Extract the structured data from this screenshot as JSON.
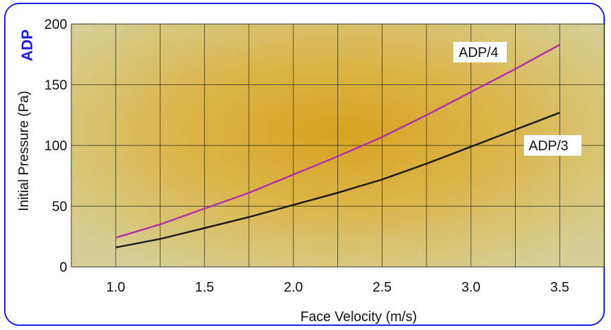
{
  "brand": "ADP",
  "colors": {
    "frame": "#1a1aff",
    "brand": "#1a1aff",
    "plot_center": "#d9a21e",
    "plot_edge": "#d6cf95",
    "grid": "#2a2a14"
  },
  "chart_data": {
    "type": "line",
    "title": "",
    "xlabel": "Face Velocity (m/s)",
    "ylabel": "Initial Pressure (Pa)",
    "xlim": [
      0.75,
      3.75
    ],
    "ylim": [
      0,
      200
    ],
    "xticks": [
      1.0,
      1.5,
      2.0,
      2.5,
      3.0,
      3.5
    ],
    "xtick_labels": [
      "1.0",
      "1.5",
      "2.0",
      "2.5",
      "3.0",
      "3.5"
    ],
    "yticks": [
      0,
      50,
      100,
      150,
      200
    ],
    "ytick_labels": [
      "0",
      "50",
      "100",
      "150",
      "200"
    ],
    "grid": true,
    "legend": "inline labels",
    "series": [
      {
        "name": "ADP/4",
        "color": "#b02fb0",
        "x": [
          1.0,
          1.25,
          1.5,
          1.75,
          2.0,
          2.25,
          2.5,
          2.75,
          3.0,
          3.25,
          3.5
        ],
        "y": [
          24,
          35,
          48,
          61,
          76,
          91,
          107,
          125,
          144,
          163,
          183
        ]
      },
      {
        "name": "ADP/3",
        "color": "#1a1a1a",
        "x": [
          1.0,
          1.25,
          1.5,
          1.75,
          2.0,
          2.25,
          2.5,
          2.75,
          3.0,
          3.25,
          3.5
        ],
        "y": [
          16,
          23,
          32,
          41,
          51,
          61,
          72,
          85,
          99,
          113,
          127
        ]
      }
    ]
  }
}
